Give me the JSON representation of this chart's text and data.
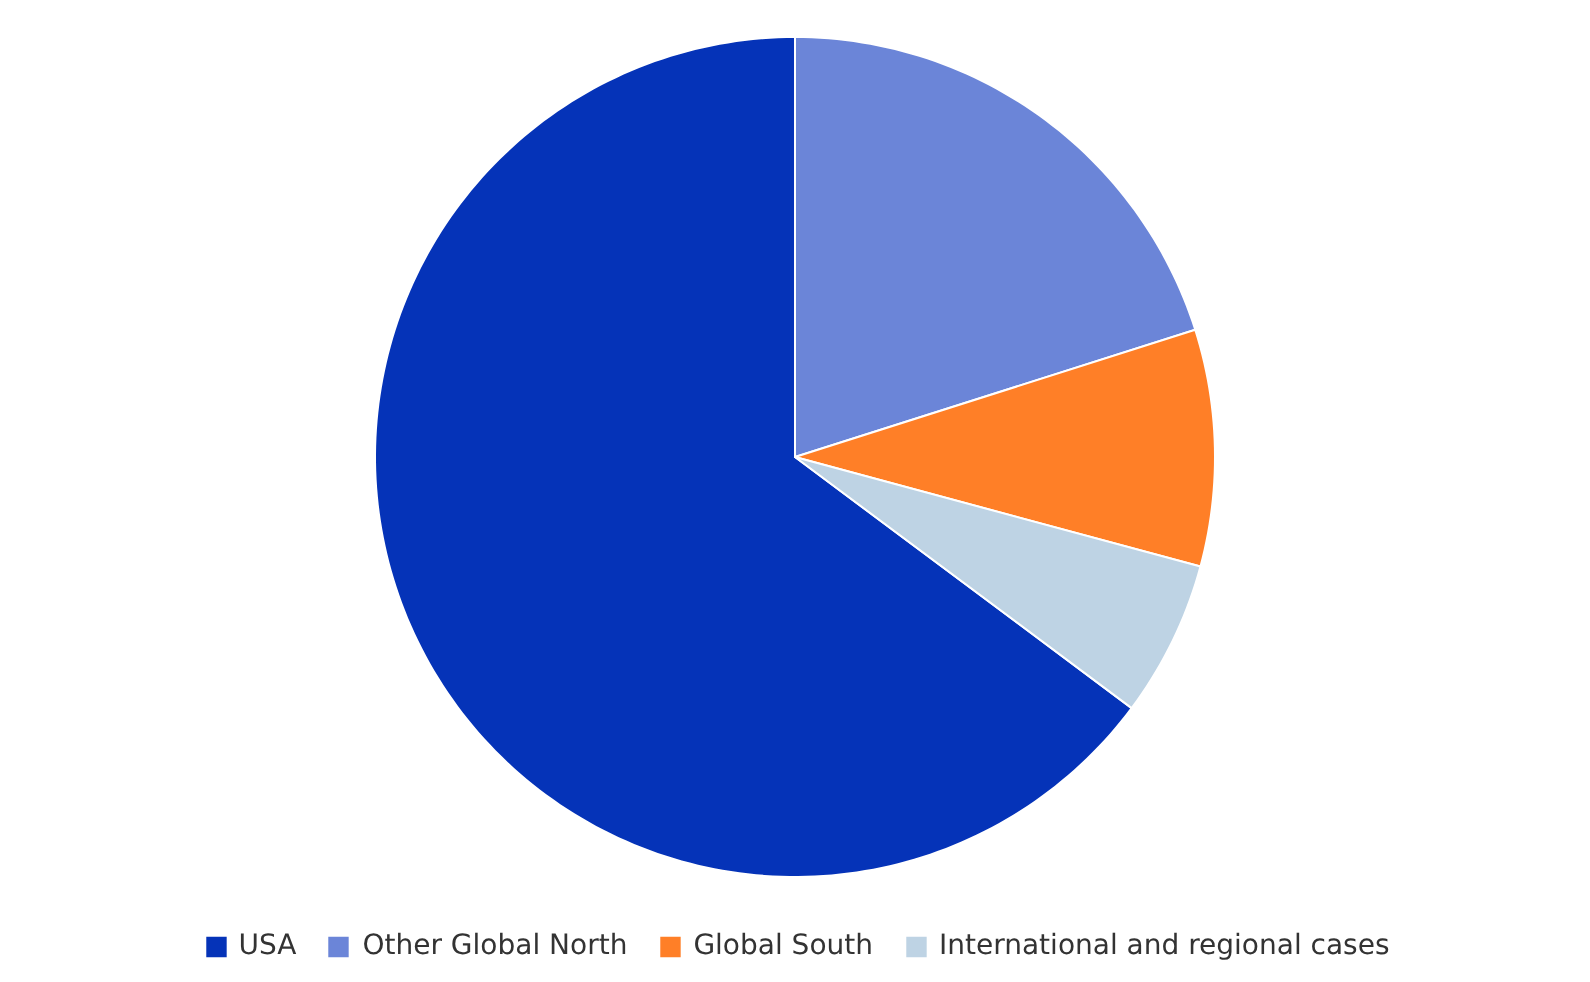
{
  "chart_data": {
    "type": "pie",
    "categories": [
      "USA",
      "Other Global North",
      "Global South",
      "International and regional cases"
    ],
    "values": [
      64.8,
      20.1,
      9.1,
      6.0
    ],
    "colors": [
      "#0533b8",
      "#6b85d8",
      "#ff7f27",
      "#bed3e4"
    ],
    "legend": "bottom"
  }
}
